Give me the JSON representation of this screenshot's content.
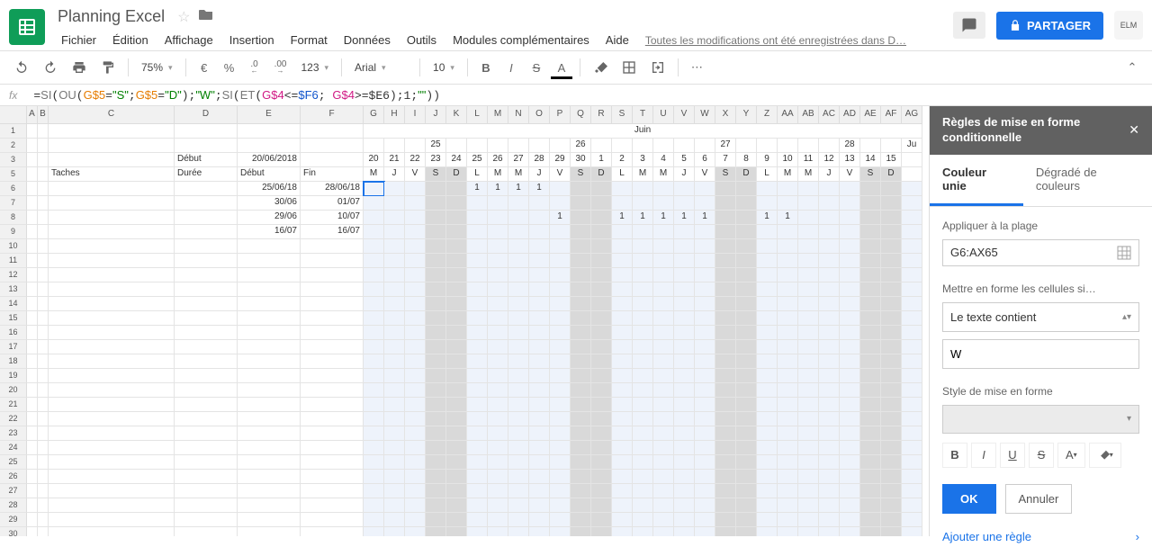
{
  "doc": {
    "title": "Planning Excel"
  },
  "menu": {
    "items": [
      "Fichier",
      "Édition",
      "Affichage",
      "Insertion",
      "Format",
      "Données",
      "Outils",
      "Modules complémentaires",
      "Aide"
    ],
    "save_status": "Toutes les modifications ont été enregistrées dans D…"
  },
  "share": {
    "label": "PARTAGER"
  },
  "toolbar": {
    "zoom": "75%",
    "currency": "€",
    "percent": "%",
    "dec_dec": ".0",
    "dec_inc": ".00",
    "numfmt": "123",
    "font": "Arial",
    "size": "10",
    "bold": "B",
    "italic": "I",
    "strike": "S",
    "textcolor": "A"
  },
  "formula": {
    "raw": "=SI(OU(G$5=\"S\";G$5=\"D\");\"W\";SI(ET(G$4<=$F6; G$4>=$E6);1;\"\"))"
  },
  "spreadsheet": {
    "col_headers": [
      "",
      "A",
      "B",
      "C",
      "D",
      "E",
      "F",
      "G",
      "H",
      "I",
      "J",
      "K",
      "L",
      "M",
      "N",
      "O",
      "P",
      "Q",
      "R",
      "S",
      "T",
      "U",
      "V",
      "W",
      "X",
      "Y",
      "Z",
      "AA",
      "AB",
      "AC",
      "AD",
      "AE",
      "AF",
      "AG"
    ],
    "month": "Juin",
    "week_days_big": [
      "25",
      "26",
      "27",
      "28"
    ],
    "row3": {
      "debut": "Début",
      "date": "20/06/2018",
      "days": [
        "20",
        "21",
        "22",
        "23",
        "24",
        "25",
        "26",
        "27",
        "28",
        "29",
        "30",
        "1",
        "2",
        "3",
        "4",
        "5",
        "6",
        "7",
        "8",
        "9",
        "10",
        "11",
        "12",
        "13",
        "14",
        "15"
      ]
    },
    "row5": {
      "taches": "Taches",
      "duree": "Durée",
      "debut": "Début",
      "fin": "Fin",
      "dow": [
        "M",
        "J",
        "V",
        "S",
        "D",
        "L",
        "M",
        "M",
        "J",
        "V",
        "S",
        "D",
        "L",
        "M",
        "M",
        "J",
        "V",
        "S",
        "D",
        "L",
        "M",
        "M",
        "J",
        "V",
        "S",
        "D"
      ]
    },
    "row6": {
      "e": "25/06/18",
      "f": "28/06/18",
      "vals": [
        "",
        "",
        "",
        "",
        "",
        "1",
        "1",
        "1",
        "1",
        "",
        "",
        "",
        "",
        "",
        "",
        "",
        "",
        "",
        "",
        "",
        "",
        "",
        "",
        "",
        "",
        ""
      ]
    },
    "row7": {
      "e": "30/06",
      "f": "01/07",
      "vals": [
        "",
        "",
        "",
        "",
        "",
        "",
        "",
        "",
        "",
        "",
        "",
        "",
        "",
        "",
        "",
        "",
        "",
        "",
        "",
        "",
        "",
        "",
        "",
        "",
        "",
        ""
      ]
    },
    "row8": {
      "e": "29/06",
      "f": "10/07",
      "vals": [
        "",
        "",
        "",
        "",
        "",
        "",
        "",
        "",
        "",
        "1",
        "",
        "",
        "1",
        "1",
        "1",
        "1",
        "1",
        "",
        "",
        "1",
        "1",
        "",
        "",
        "",
        "",
        ""
      ]
    },
    "row9": {
      "e": "16/07",
      "f": "16/07",
      "vals": [
        "",
        "",
        "",
        "",
        "",
        "",
        "",
        "",
        "",
        "",
        "",
        "",
        "",
        "",
        "",
        "",
        "",
        "",
        "",
        "",
        "",
        "",
        "",
        "",
        "",
        ""
      ]
    },
    "weekend_cols": [
      3,
      4,
      10,
      11,
      17,
      18,
      24,
      25
    ]
  },
  "panel": {
    "title": "Règles de mise en forme conditionnelle",
    "tab1": "Couleur unie",
    "tab2": "Dégradé de couleurs",
    "apply_label": "Appliquer à la plage",
    "range": "G6:AX65",
    "format_if_label": "Mettre en forme les cellules si…",
    "condition": "Le texte contient",
    "value": "W",
    "style_label": "Style de mise en forme",
    "ok": "OK",
    "cancel": "Annuler",
    "add_rule": "Ajouter une règle"
  }
}
